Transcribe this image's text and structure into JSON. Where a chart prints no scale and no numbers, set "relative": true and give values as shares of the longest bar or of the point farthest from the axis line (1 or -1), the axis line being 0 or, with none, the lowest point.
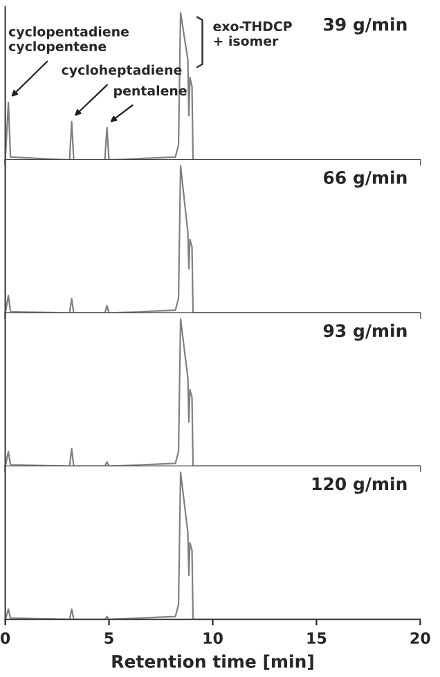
{
  "chart_data": [
    {
      "type": "line",
      "relative": true,
      "xlim": [
        0,
        20
      ],
      "xticks": [
        0,
        5,
        10,
        15,
        20
      ],
      "tick_labels": false,
      "grid": false,
      "legend": false,
      "series": [
        {
          "color": "#808080",
          "x": [
            0,
            0.15,
            0.25,
            3.1,
            3.2,
            3.3,
            4.8,
            4.9,
            5.0,
            8.2,
            8.35,
            8.45,
            8.8,
            8.85,
            8.9,
            9.0,
            9.05,
            20
          ],
          "values": [
            0,
            0.39,
            0.02,
            0,
            0.26,
            0,
            0,
            0.22,
            0,
            0.02,
            0.1,
            1.0,
            0.68,
            0.3,
            0.56,
            0.5,
            0,
            0
          ]
        }
      ],
      "annotations": [
        {
          "text": "cyclopentadiene\ncyclopentene",
          "x": 0.15,
          "y": 0.39
        },
        {
          "text": "cycloheptadiene",
          "x": 3.2,
          "y": 0.26
        },
        {
          "text": "pentalene",
          "x": 4.9,
          "y": 0.22
        },
        {
          "text": "exo-THDCP\n+ isomer",
          "x": 8.9,
          "y": 0.8
        },
        "39 g/min"
      ]
    },
    {
      "type": "line",
      "relative": true,
      "xlim": [
        0,
        20
      ],
      "xticks": [
        0,
        5,
        10,
        15,
        20
      ],
      "tick_labels": false,
      "grid": false,
      "legend": false,
      "series": [
        {
          "color": "#808080",
          "x": [
            0,
            0.15,
            0.25,
            3.1,
            3.2,
            3.3,
            4.8,
            4.9,
            5.0,
            8.2,
            8.35,
            8.45,
            8.8,
            8.85,
            8.9,
            9.0,
            9.05,
            20
          ],
          "values": [
            0,
            0.12,
            0.01,
            0,
            0.1,
            0,
            0,
            0.05,
            0,
            0.02,
            0.1,
            1.0,
            0.55,
            0.3,
            0.5,
            0.45,
            0,
            0
          ]
        }
      ],
      "annotations": [
        "66 g/min"
      ]
    },
    {
      "type": "line",
      "relative": true,
      "xlim": [
        0,
        20
      ],
      "xticks": [
        0,
        5,
        10,
        15,
        20
      ],
      "tick_labels": false,
      "grid": false,
      "legend": false,
      "series": [
        {
          "color": "#808080",
          "x": [
            0,
            0.15,
            0.25,
            3.1,
            3.2,
            3.3,
            4.8,
            4.9,
            5.0,
            8.2,
            8.35,
            8.45,
            8.8,
            8.85,
            8.9,
            9.0,
            9.05,
            20
          ],
          "values": [
            0,
            0.1,
            0.01,
            0,
            0.12,
            0,
            0,
            0.03,
            0,
            0.02,
            0.1,
            1.0,
            0.6,
            0.3,
            0.52,
            0.47,
            0,
            0
          ]
        }
      ],
      "annotations": [
        "93 g/min"
      ]
    },
    {
      "type": "line",
      "relative": true,
      "xlim": [
        0,
        20
      ],
      "xticks": [
        0,
        5,
        10,
        15,
        20
      ],
      "tick_labels": "x",
      "grid": false,
      "legend": false,
      "xlabel": "Retention time [min]",
      "series": [
        {
          "color": "#808080",
          "x": [
            0,
            0.15,
            0.25,
            3.1,
            3.2,
            3.3,
            4.8,
            4.9,
            5.0,
            8.2,
            8.35,
            8.45,
            8.8,
            8.85,
            8.9,
            9.0,
            9.05,
            20
          ],
          "values": [
            0,
            0.07,
            0.01,
            0,
            0.07,
            0,
            0,
            0.02,
            0,
            0.02,
            0.1,
            1.0,
            0.59,
            0.3,
            0.52,
            0.47,
            0,
            0
          ]
        }
      ],
      "annotations": [
        "120 g/min"
      ]
    }
  ]
}
